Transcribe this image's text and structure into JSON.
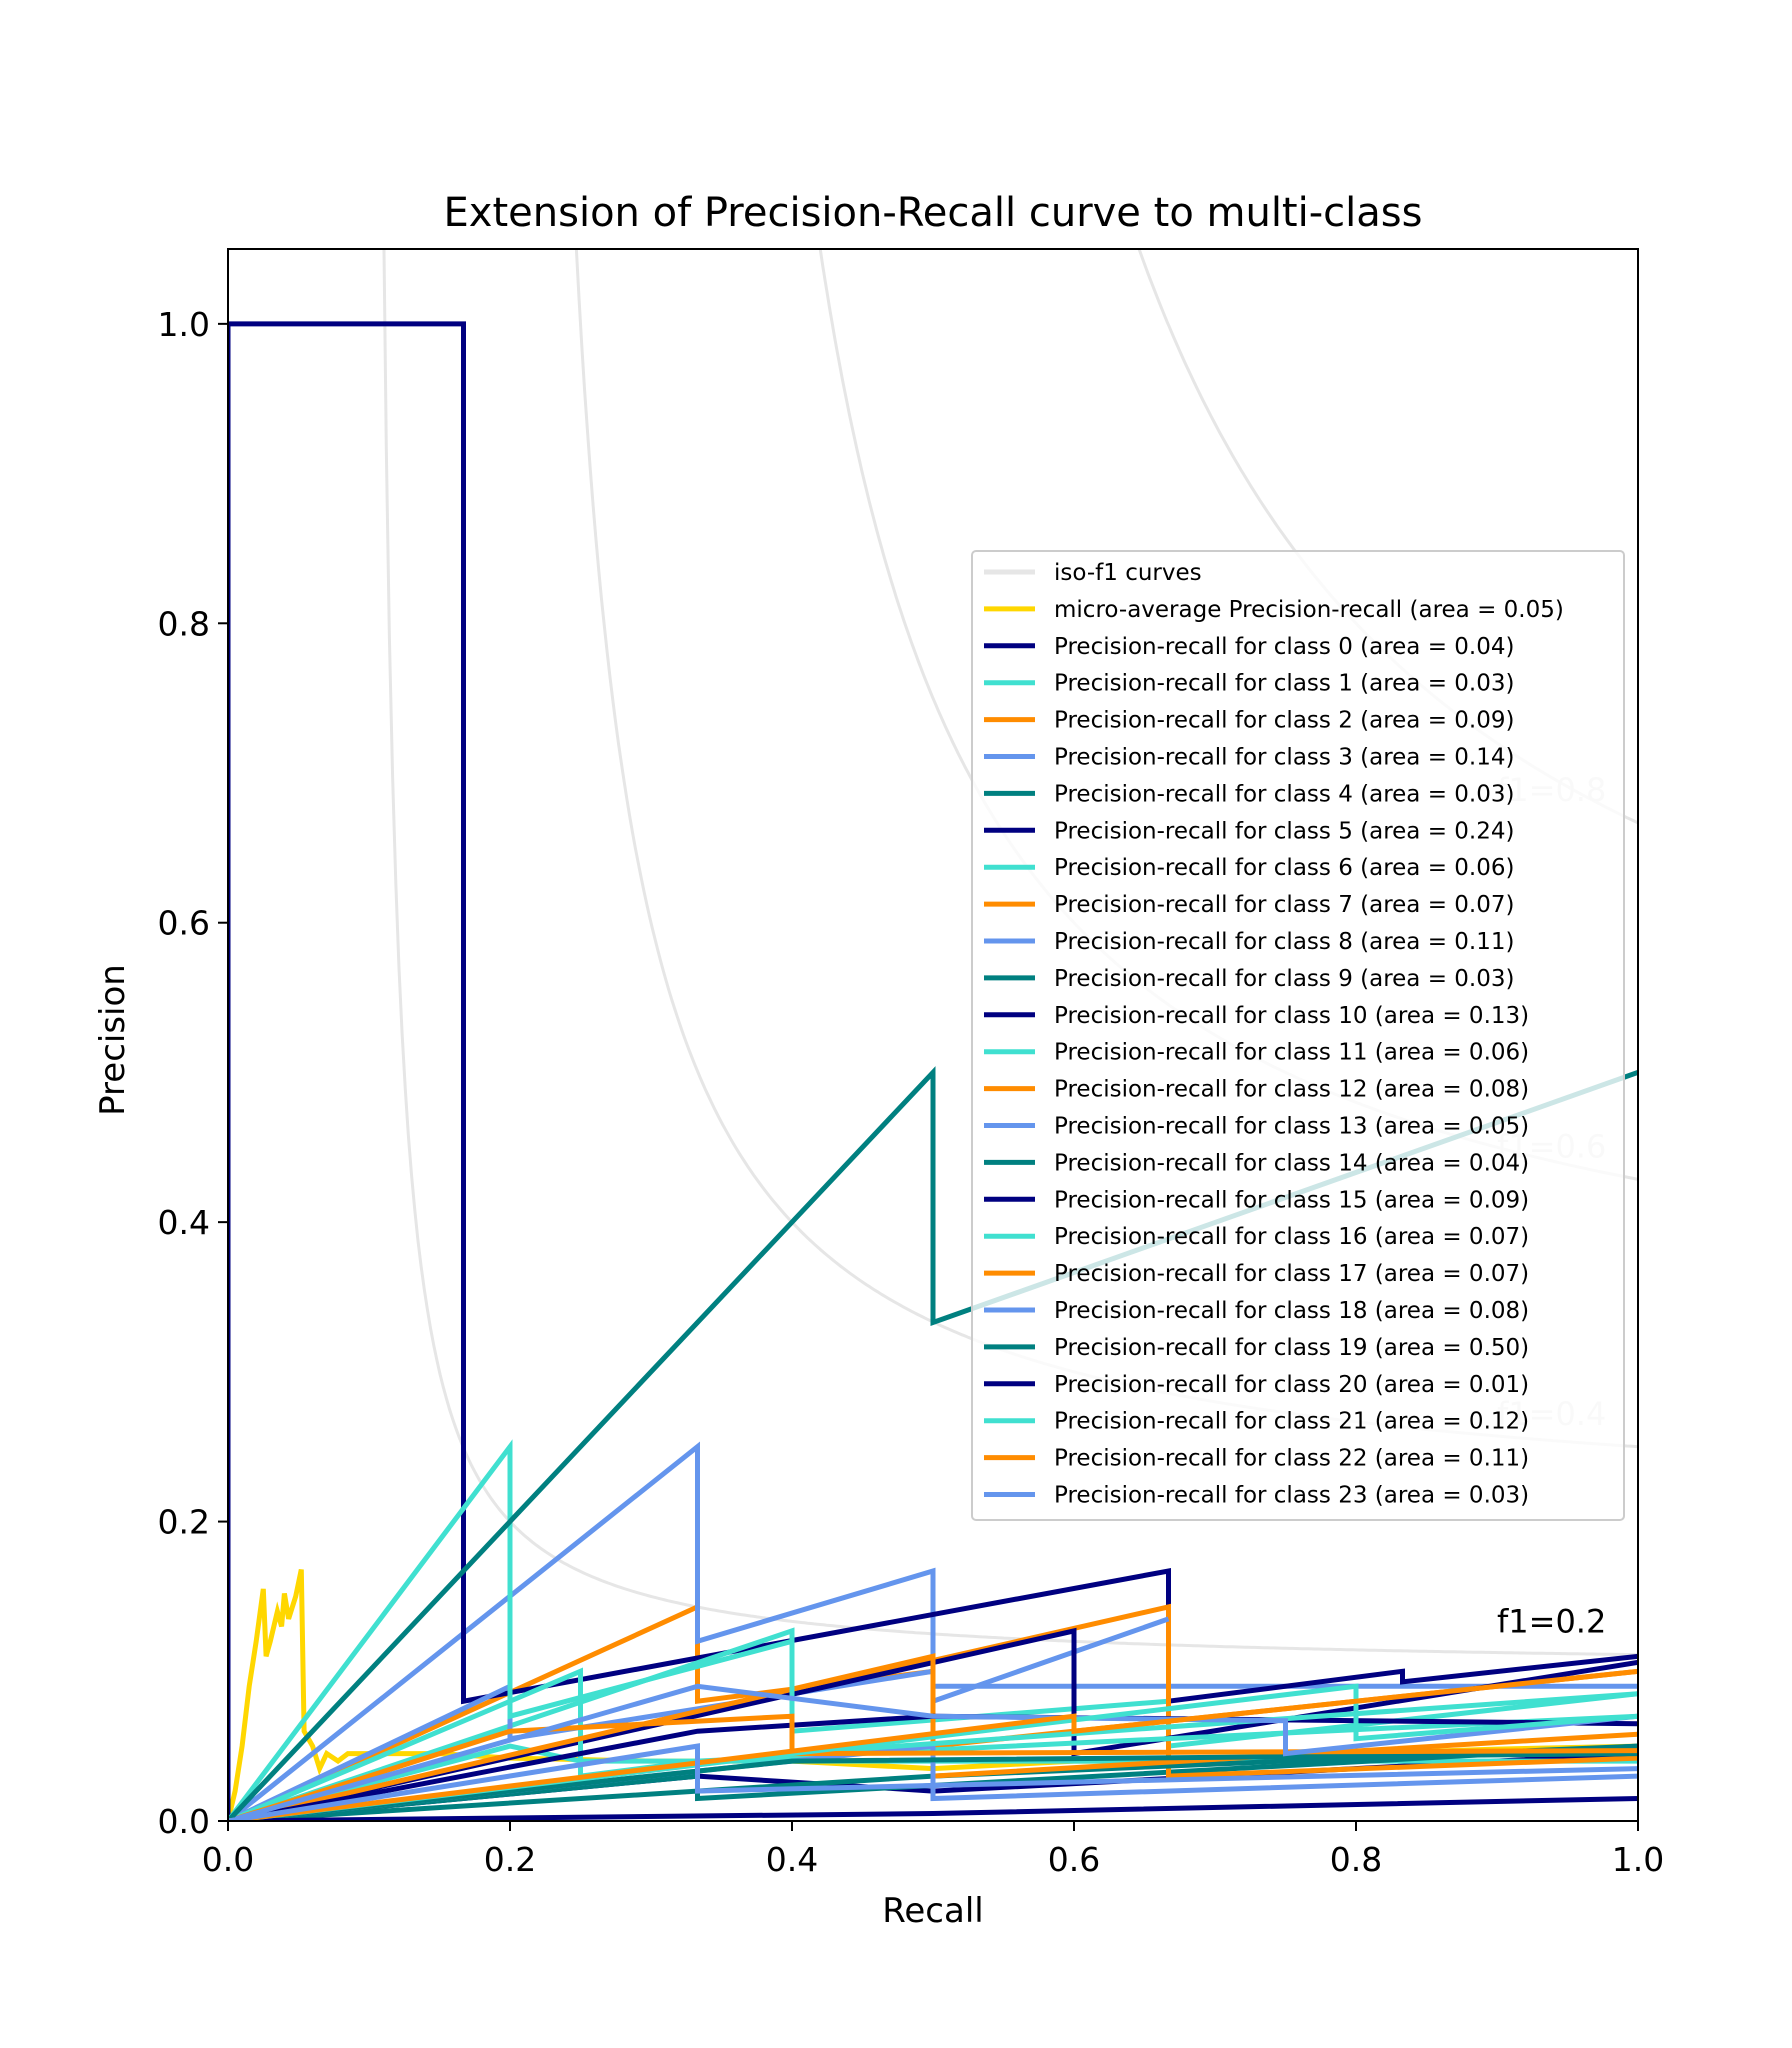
{
  "chart_data": {
    "type": "line",
    "title": "Extension of Precision-Recall curve to multi-class",
    "xlabel": "Recall",
    "ylabel": "Precision",
    "xlim": [
      0.0,
      1.0
    ],
    "ylim": [
      0.0,
      1.05
    ],
    "xticks": [
      "0.0",
      "0.2",
      "0.4",
      "0.6",
      "0.8",
      "1.0"
    ],
    "yticks": [
      "0.0",
      "0.2",
      "0.4",
      "0.6",
      "0.8",
      "1.0"
    ],
    "grid": false,
    "legend_position": "center-right",
    "iso_f1": {
      "legend_label": "iso-f1 curves",
      "color": "#e6e6e6",
      "values": [
        0.2,
        0.4,
        0.6,
        0.8
      ],
      "labels": [
        "f1=0.2",
        "f1=0.4",
        "f1=0.6",
        "f1=0.8"
      ]
    },
    "series": [
      {
        "name": "micro-average Precision-recall (area = 0.05)",
        "color": "#FFD700",
        "points": [
          [
            0,
            0
          ],
          [
            0.005,
            0.02
          ],
          [
            0.01,
            0.05
          ],
          [
            0.015,
            0.09
          ],
          [
            0.02,
            0.12
          ],
          [
            0.025,
            0.155
          ],
          [
            0.027,
            0.11
          ],
          [
            0.03,
            0.12
          ],
          [
            0.035,
            0.14
          ],
          [
            0.038,
            0.13
          ],
          [
            0.04,
            0.152
          ],
          [
            0.043,
            0.135
          ],
          [
            0.048,
            0.15
          ],
          [
            0.052,
            0.168
          ],
          [
            0.054,
            0.06
          ],
          [
            0.06,
            0.05
          ],
          [
            0.065,
            0.035
          ],
          [
            0.07,
            0.045
          ],
          [
            0.078,
            0.04
          ],
          [
            0.085,
            0.045
          ],
          [
            0.15,
            0.045
          ],
          [
            0.2,
            0.042
          ],
          [
            0.3,
            0.04
          ],
          [
            0.4,
            0.04
          ],
          [
            0.5,
            0.035
          ],
          [
            0.6,
            0.04
          ],
          [
            0.7,
            0.04
          ],
          [
            0.8,
            0.045
          ],
          [
            0.9,
            0.048
          ],
          [
            1.0,
            0.05
          ]
        ]
      },
      {
        "name": "Precision-recall for class 0 (area = 0.04)",
        "color": "#000080",
        "points": [
          [
            0,
            0
          ],
          [
            0.333,
            0.03
          ],
          [
            0.5,
            0.02
          ],
          [
            1.0,
            0.045
          ]
        ]
      },
      {
        "name": "Precision-recall for class 1 (area = 0.03)",
        "color": "#40E0D0",
        "points": [
          [
            0,
            0
          ],
          [
            0.2,
            0.05
          ],
          [
            0.25,
            0.04
          ],
          [
            1.0,
            0.04
          ]
        ]
      },
      {
        "name": "Precision-recall for class 2 (area = 0.09)",
        "color": "#FF8C00",
        "points": [
          [
            0,
            0
          ],
          [
            0.333,
            0.143
          ],
          [
            0.333,
            0.08
          ],
          [
            0.5,
            0.1
          ],
          [
            0.5,
            0.05
          ],
          [
            1.0,
            0.1
          ]
        ]
      },
      {
        "name": "Precision-recall for class 3 (area = 0.14)",
        "color": "#6495ED",
        "points": [
          [
            0,
            0
          ],
          [
            0.333,
            0.25
          ],
          [
            0.333,
            0.12
          ],
          [
            0.5,
            0.167
          ],
          [
            0.5,
            0.09
          ],
          [
            1.0,
            0.09
          ]
        ]
      },
      {
        "name": "Precision-recall for class 4 (area = 0.03)",
        "color": "#008080",
        "points": [
          [
            0,
            0
          ],
          [
            0.333,
            0.03
          ],
          [
            0.333,
            0.015
          ],
          [
            1.0,
            0.05
          ]
        ]
      },
      {
        "name": "Precision-recall for class 5 (area = 0.24)",
        "color": "#000080",
        "points": [
          [
            0,
            0
          ],
          [
            0,
            1.0
          ],
          [
            0.167,
            1.0
          ],
          [
            0.167,
            0.08
          ],
          [
            0.667,
            0.167
          ],
          [
            0.667,
            0.08
          ],
          [
            0.833,
            0.1
          ],
          [
            0.833,
            0.093
          ],
          [
            1.0,
            0.11
          ]
        ]
      },
      {
        "name": "Precision-recall for class 6 (area = 0.06)",
        "color": "#40E0D0",
        "points": [
          [
            0,
            0
          ],
          [
            0.4,
            0.127
          ],
          [
            0.4,
            0.06
          ],
          [
            0.667,
            0.08
          ],
          [
            0.667,
            0.05
          ],
          [
            1.0,
            0.085
          ]
        ]
      },
      {
        "name": "Precision-recall for class 7 (area = 0.07)",
        "color": "#FF8C00",
        "points": [
          [
            0,
            0
          ],
          [
            0.667,
            0.143
          ],
          [
            0.667,
            0.03
          ],
          [
            1.0,
            0.042
          ]
        ]
      },
      {
        "name": "Precision-recall for class 8 (area = 0.11)",
        "color": "#6495ED",
        "points": [
          [
            0,
            0
          ],
          [
            0.2,
            0.09
          ],
          [
            0.2,
            0.055
          ],
          [
            0.5,
            0.1
          ],
          [
            0.5,
            0.08
          ],
          [
            0.667,
            0.135
          ]
        ]
      },
      {
        "name": "Precision-recall for class 9 (area = 0.03)",
        "color": "#008080",
        "points": [
          [
            0,
            0
          ],
          [
            0.5,
            0.03
          ],
          [
            1.0,
            0.05
          ]
        ]
      },
      {
        "name": "Precision-recall for class 10 (area = 0.13)",
        "color": "#000080",
        "points": [
          [
            0,
            0
          ],
          [
            0.6,
            0.127
          ],
          [
            0.6,
            0.045
          ],
          [
            1.0,
            0.106
          ]
        ]
      },
      {
        "name": "Precision-recall for class 11 (area = 0.06)",
        "color": "#40E0D0",
        "points": [
          [
            0,
            0
          ],
          [
            0.25,
            0.1
          ],
          [
            0.25,
            0.03
          ],
          [
            0.333,
            0.04
          ],
          [
            1.0,
            0.07
          ]
        ]
      },
      {
        "name": "Precision-recall for class 12 (area = 0.08)",
        "color": "#FF8C00",
        "points": [
          [
            0,
            0
          ],
          [
            0.5,
            0.11
          ],
          [
            0.5,
            0.03
          ],
          [
            1.0,
            0.058
          ]
        ]
      },
      {
        "name": "Precision-recall for class 13 (area = 0.05)",
        "color": "#6495ED",
        "points": [
          [
            0,
            0
          ],
          [
            0.5,
            0.05
          ],
          [
            0.5,
            0.015
          ],
          [
            1.0,
            0.03
          ]
        ]
      },
      {
        "name": "Precision-recall for class 14 (area = 0.04)",
        "color": "#008080",
        "points": [
          [
            0,
            0
          ],
          [
            0.4,
            0.04
          ],
          [
            1.0,
            0.045
          ]
        ]
      },
      {
        "name": "Precision-recall for class 15 (area = 0.09)",
        "color": "#000080",
        "points": [
          [
            0,
            0
          ],
          [
            0.333,
            0.06
          ],
          [
            0.5,
            0.07
          ],
          [
            1.0,
            0.065
          ]
        ]
      },
      {
        "name": "Precision-recall for class 16 (area = 0.07)",
        "color": "#40E0D0",
        "points": [
          [
            0,
            0
          ],
          [
            0.2,
            0.25
          ],
          [
            0.2,
            0.07
          ],
          [
            0.4,
            0.12
          ],
          [
            0.4,
            0.045
          ],
          [
            1.0,
            0.085
          ]
        ]
      },
      {
        "name": "Precision-recall for class 17 (area = 0.07)",
        "color": "#FF8C00",
        "points": [
          [
            0,
            0
          ],
          [
            0.2,
            0.06
          ],
          [
            0.4,
            0.07
          ],
          [
            0.4,
            0.045
          ],
          [
            1.0,
            0.047
          ]
        ]
      },
      {
        "name": "Precision-recall for class 18 (area = 0.08)",
        "color": "#6495ED",
        "points": [
          [
            0,
            0
          ],
          [
            0.333,
            0.09
          ],
          [
            0.5,
            0.07
          ],
          [
            0.75,
            0.067
          ],
          [
            0.75,
            0.045
          ],
          [
            1.0,
            0.07
          ]
        ]
      },
      {
        "name": "Precision-recall for class 19 (area = 0.50)",
        "color": "#008080",
        "points": [
          [
            0,
            0
          ],
          [
            0.5,
            0.5
          ],
          [
            0.5,
            0.333
          ],
          [
            1.0,
            0.5
          ]
        ]
      },
      {
        "name": "Precision-recall for class 20 (area = 0.01)",
        "color": "#000080",
        "points": [
          [
            0,
            0
          ],
          [
            0.5,
            0.005
          ],
          [
            1.0,
            0.015
          ]
        ]
      },
      {
        "name": "Precision-recall for class 21 (area = 0.12)",
        "color": "#40E0D0",
        "points": [
          [
            0,
            0
          ],
          [
            0.8,
            0.09
          ],
          [
            0.8,
            0.055
          ],
          [
            1.0,
            0.07
          ]
        ]
      },
      {
        "name": "Precision-recall for class 22 (area = 0.11)",
        "color": "#FF8C00",
        "points": [
          [
            0,
            0
          ],
          [
            0.6,
            0.07
          ],
          [
            0.6,
            0.06
          ],
          [
            1.0,
            0.1
          ]
        ]
      },
      {
        "name": "Precision-recall for class 23 (area = 0.03)",
        "color": "#6495ED",
        "points": [
          [
            0,
            0
          ],
          [
            0.333,
            0.05
          ],
          [
            0.333,
            0.02
          ],
          [
            1.0,
            0.035
          ]
        ]
      }
    ]
  }
}
